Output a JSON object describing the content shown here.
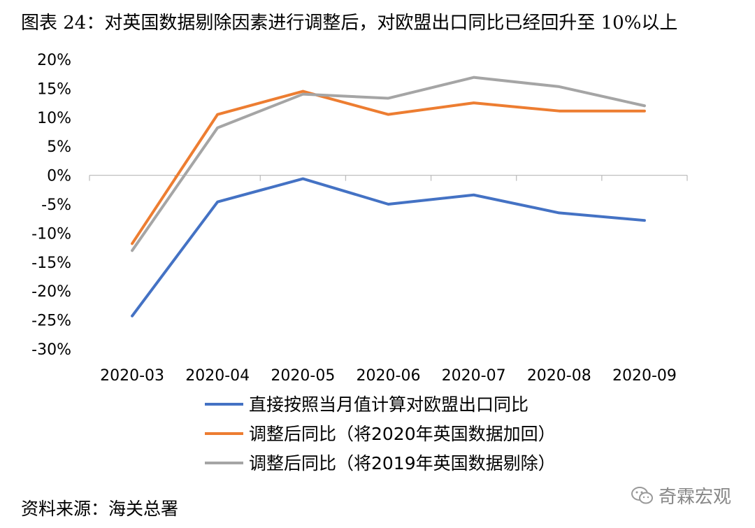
{
  "title": "图表 24：对英国数据剔除因素进行调整后，对欧盟出口同比已经回升至 10%以上",
  "source": "资料来源：海关总署",
  "watermark": "奇霖宏观",
  "chart_data": {
    "type": "line",
    "title": "",
    "xlabel": "",
    "ylabel": "",
    "ylim": [
      -30,
      20
    ],
    "yticks": [
      20,
      15,
      10,
      5,
      0,
      -5,
      -10,
      -15,
      -20,
      -25,
      -30
    ],
    "ytick_labels": [
      "20%",
      "15%",
      "10%",
      "5%",
      "0%",
      "-5%",
      "-10%",
      "-15%",
      "-20%",
      "-25%",
      "-30%"
    ],
    "categories": [
      "2020-03",
      "2020-04",
      "2020-05",
      "2020-06",
      "2020-07",
      "2020-08",
      "2020-09"
    ],
    "grid": false,
    "legend": "bottom",
    "series": [
      {
        "name": "直接按照当月值计算对欧盟出口同比",
        "color": "#4472C4",
        "values": [
          -24.3,
          -4.6,
          -0.6,
          -5.0,
          -3.4,
          -6.5,
          -7.8
        ]
      },
      {
        "name": "调整后同比（将2020年英国数据加回）",
        "color": "#ED7D31",
        "values": [
          -11.8,
          10.5,
          14.5,
          10.5,
          12.5,
          11.1,
          11.1
        ]
      },
      {
        "name": "调整后同比（将2019年英国数据剔除）",
        "color": "#A5A5A5",
        "values": [
          -13.0,
          8.2,
          14.0,
          13.3,
          16.9,
          15.3,
          12.0
        ]
      }
    ]
  }
}
